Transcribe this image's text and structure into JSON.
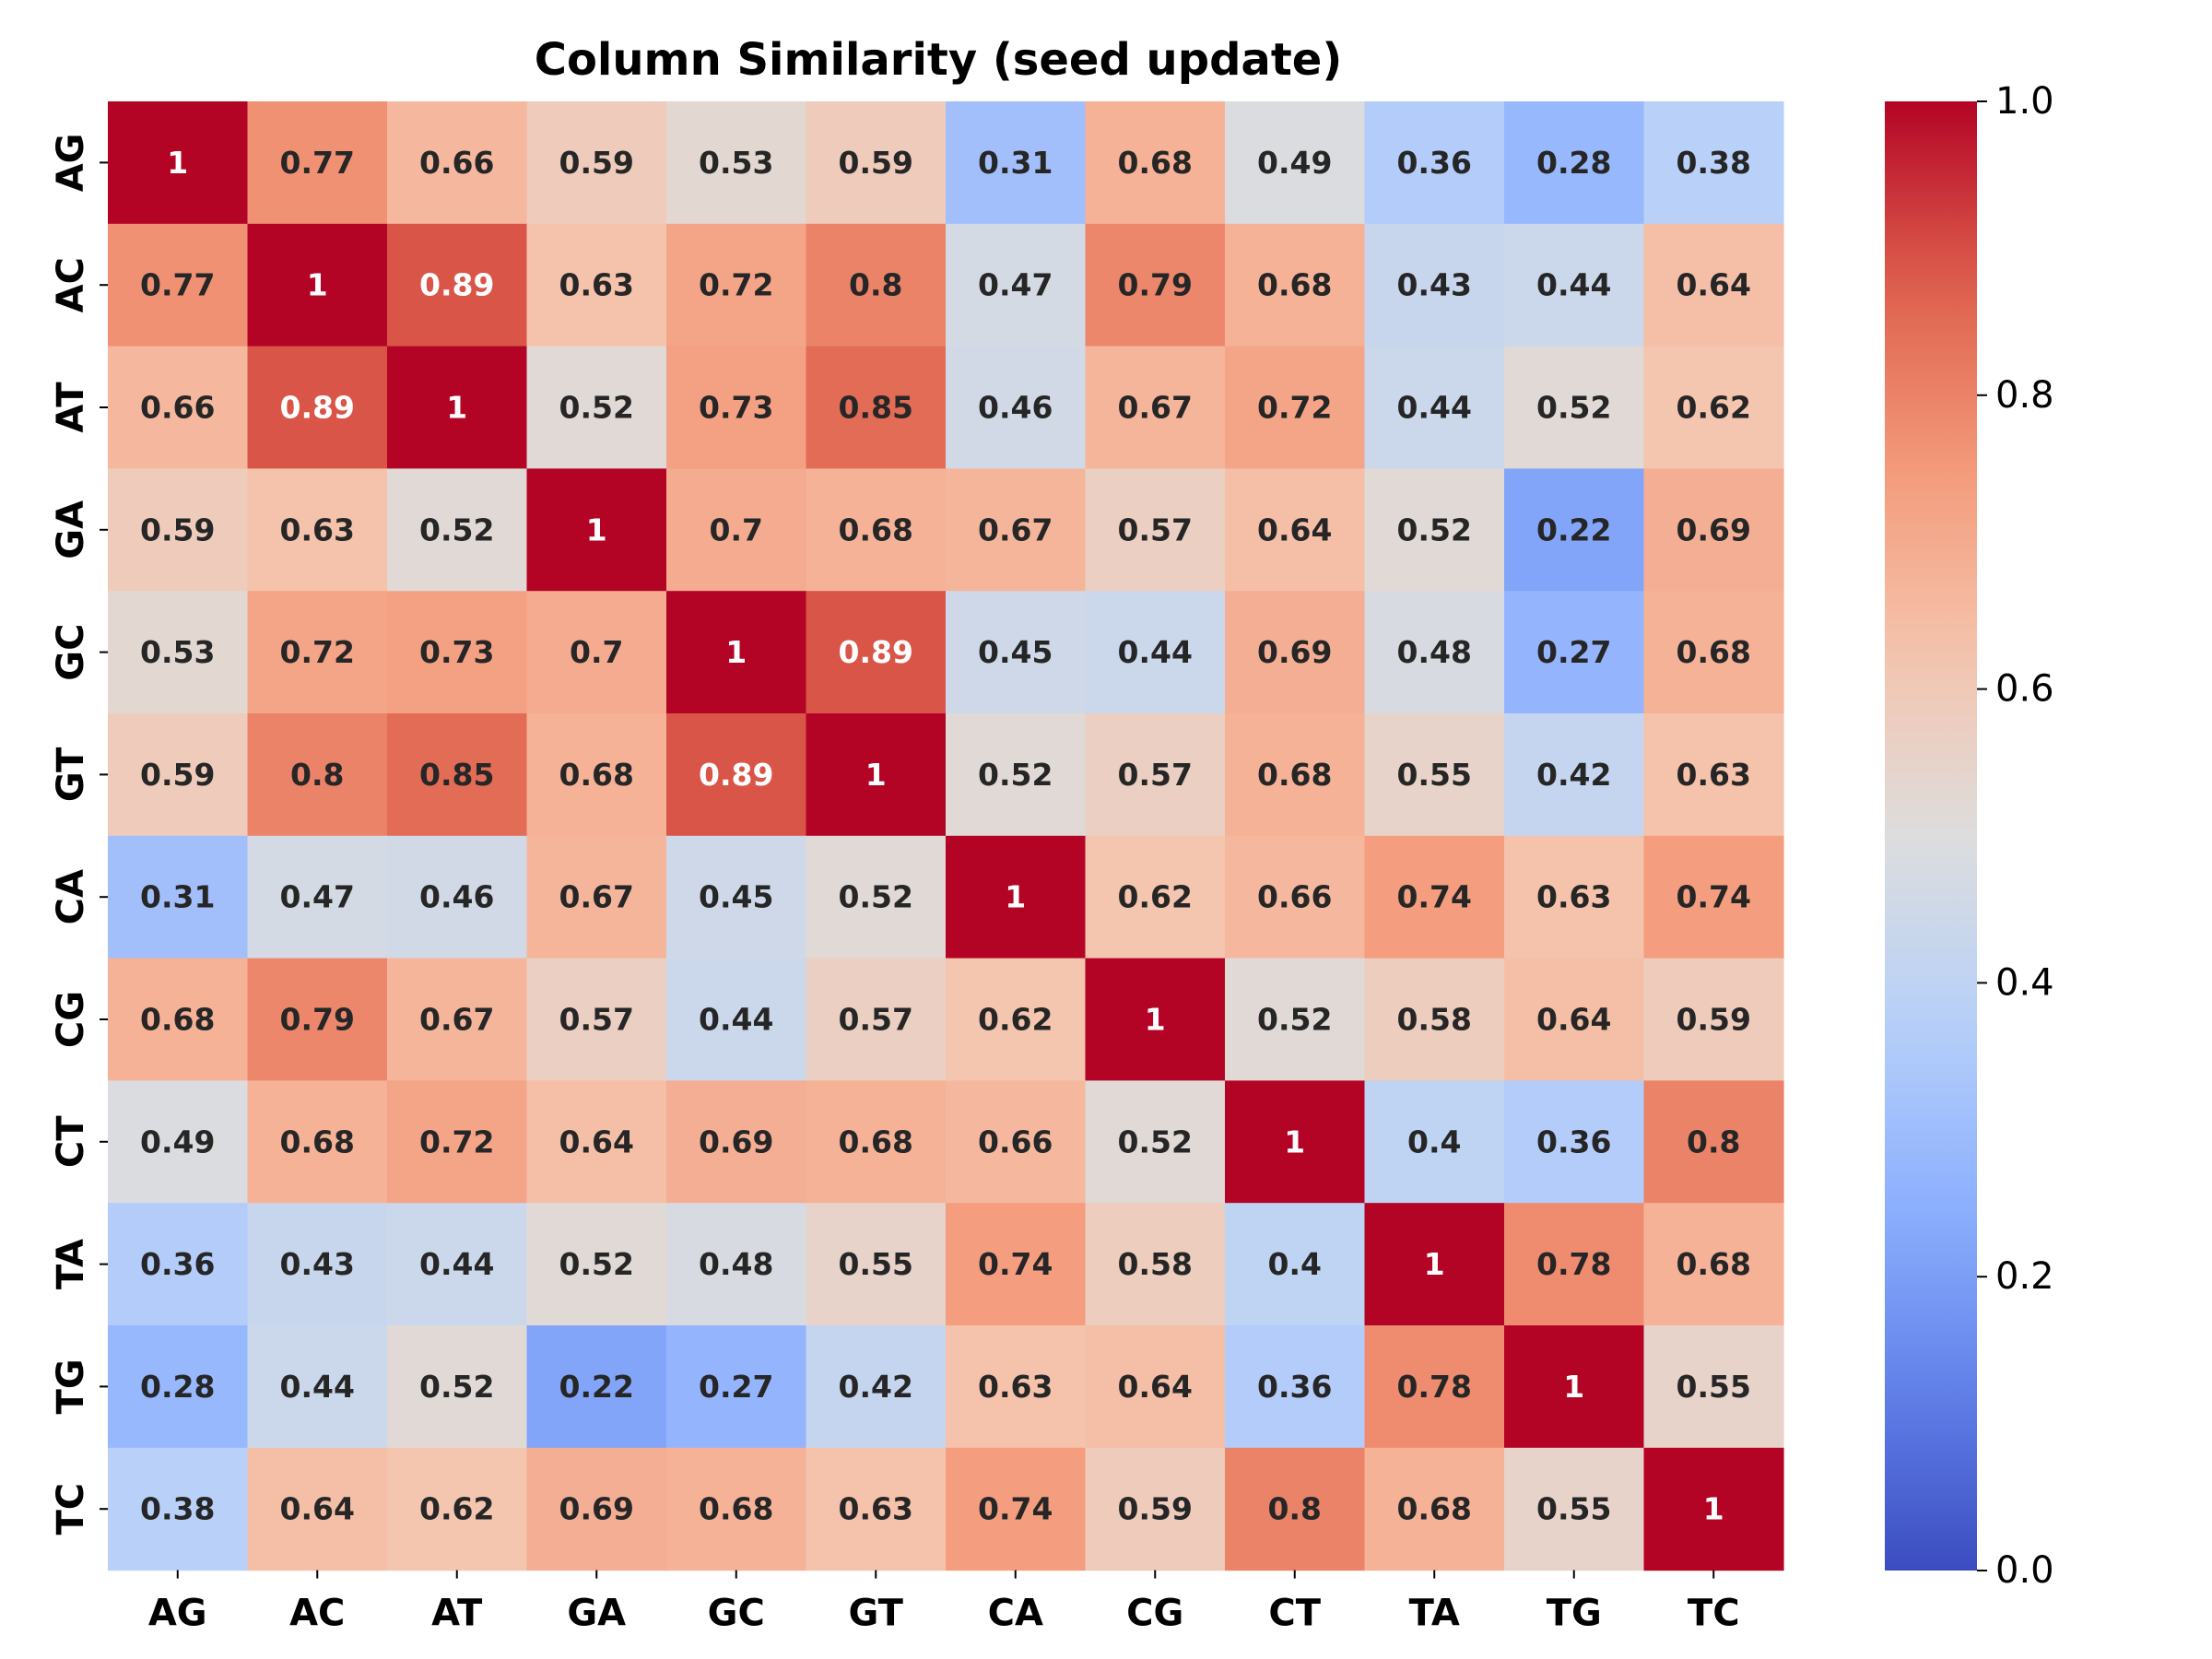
{
  "chart_data": {
    "type": "heatmap",
    "title": "Column Similarity (seed update)",
    "row_labels": [
      "AG",
      "AC",
      "AT",
      "GA",
      "GC",
      "GT",
      "CA",
      "CG",
      "CT",
      "TA",
      "TG",
      "TC"
    ],
    "col_labels": [
      "AG",
      "AC",
      "AT",
      "GA",
      "GC",
      "GT",
      "CA",
      "CG",
      "CT",
      "TA",
      "TG",
      "TC"
    ],
    "values": [
      [
        1,
        0.77,
        0.66,
        0.59,
        0.53,
        0.59,
        0.31,
        0.68,
        0.49,
        0.36,
        0.28,
        0.38
      ],
      [
        0.77,
        1,
        0.89,
        0.63,
        0.72,
        0.8,
        0.47,
        0.79,
        0.68,
        0.43,
        0.44,
        0.64
      ],
      [
        0.66,
        0.89,
        1,
        0.52,
        0.73,
        0.85,
        0.46,
        0.67,
        0.72,
        0.44,
        0.52,
        0.62
      ],
      [
        0.59,
        0.63,
        0.52,
        1,
        0.7,
        0.68,
        0.67,
        0.57,
        0.64,
        0.52,
        0.22,
        0.69
      ],
      [
        0.53,
        0.72,
        0.73,
        0.7,
        1,
        0.89,
        0.45,
        0.44,
        0.69,
        0.48,
        0.27,
        0.68
      ],
      [
        0.59,
        0.8,
        0.85,
        0.68,
        0.89,
        1,
        0.52,
        0.57,
        0.68,
        0.55,
        0.42,
        0.63
      ],
      [
        0.31,
        0.47,
        0.46,
        0.67,
        0.45,
        0.52,
        1,
        0.62,
        0.66,
        0.74,
        0.63,
        0.74
      ],
      [
        0.68,
        0.79,
        0.67,
        0.57,
        0.44,
        0.57,
        0.62,
        1,
        0.52,
        0.58,
        0.64,
        0.59
      ],
      [
        0.49,
        0.68,
        0.72,
        0.64,
        0.69,
        0.68,
        0.66,
        0.52,
        1,
        0.4,
        0.36,
        0.8
      ],
      [
        0.36,
        0.43,
        0.44,
        0.52,
        0.48,
        0.55,
        0.74,
        0.58,
        0.4,
        1,
        0.78,
        0.68
      ],
      [
        0.28,
        0.44,
        0.52,
        0.22,
        0.27,
        0.42,
        0.63,
        0.64,
        0.36,
        0.78,
        1,
        0.55
      ],
      [
        0.38,
        0.64,
        0.62,
        0.69,
        0.68,
        0.63,
        0.74,
        0.59,
        0.8,
        0.68,
        0.55,
        1
      ]
    ],
    "colorbar": {
      "colormap": "coolwarm",
      "vmin": 0.0,
      "vmax": 1.0,
      "ticks": [
        "0.0",
        "0.2",
        "0.4",
        "0.6",
        "0.8",
        "1.0"
      ]
    },
    "annotations": true,
    "grid": false
  }
}
